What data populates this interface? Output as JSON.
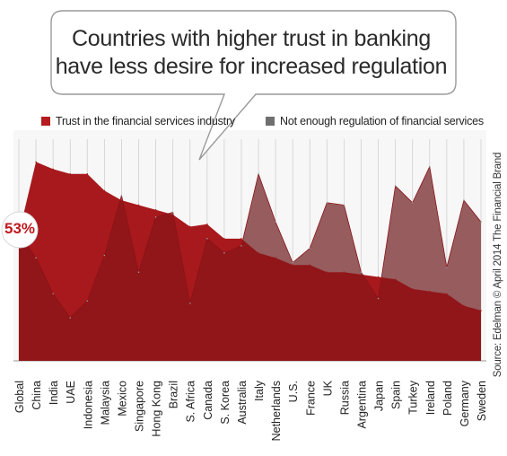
{
  "callout": {
    "line1": "Countries with higher trust in banking",
    "line2": "have less desire for increased regulation"
  },
  "source": "Source: Edelman © April 2014 The Financial Brand",
  "colors": {
    "trust": "#a7191c",
    "trust_dark": "#7d1417",
    "regulation": "#b4b4b4",
    "regulation_legend": "#6f6f6f",
    "grid": "#d0d0d0"
  },
  "chart_data": {
    "type": "area",
    "categories": [
      "Global",
      "China",
      "India",
      "UAE",
      "Indonesia",
      "Malaysia",
      "Mexico",
      "Singapore",
      "Hong Kong",
      "Brazil",
      "S. Africa",
      "Canada",
      "S. Korea",
      "Australia",
      "Italy",
      "Netherlands",
      "U.S.",
      "France",
      "UK",
      "Russia",
      "Argentina",
      "Japan",
      "Spain",
      "Turkey",
      "Ireland",
      "Poland",
      "Germany",
      "Sweden"
    ],
    "series": [
      {
        "name": "Trust in the financial services industry",
        "values": [
          53,
          83,
          80,
          78,
          78,
          71,
          67,
          65,
          63,
          61,
          56,
          57,
          51,
          51,
          45,
          43,
          40,
          40,
          37,
          37,
          36,
          35,
          34,
          30,
          29,
          28,
          23,
          21
        ]
      },
      {
        "name": "Not enough regulation of financial services",
        "values": [
          53,
          43,
          28,
          18,
          25,
          44,
          69,
          37,
          60,
          62,
          24,
          51,
          45,
          48,
          78,
          58,
          41,
          47,
          66,
          65,
          37,
          26,
          73,
          66,
          81,
          39,
          67,
          58
        ]
      }
    ],
    "annotation": "53%",
    "ylim": [
      0,
      100
    ],
    "grid": "vertical",
    "legend": "top"
  }
}
